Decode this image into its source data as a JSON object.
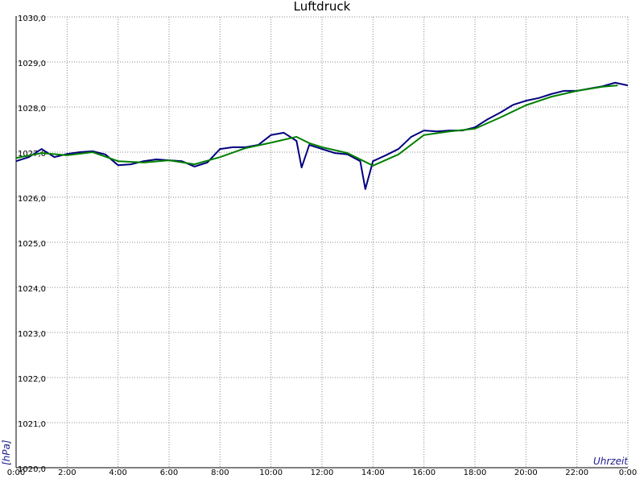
{
  "chart_data": {
    "type": "line",
    "title": "Luftdruck",
    "xlabel": "Uhrzeit",
    "ylabel": "[hPa]",
    "xlim": [
      0,
      24
    ],
    "ylim": [
      1020,
      1030
    ],
    "xticks": [
      {
        "value": 0,
        "label": "0:00"
      },
      {
        "value": 2,
        "label": "2:00"
      },
      {
        "value": 4,
        "label": "4:00"
      },
      {
        "value": 6,
        "label": "6:00"
      },
      {
        "value": 8,
        "label": "8:00"
      },
      {
        "value": 10,
        "label": "10:00"
      },
      {
        "value": 12,
        "label": "12:00"
      },
      {
        "value": 14,
        "label": "14:00"
      },
      {
        "value": 16,
        "label": "16:00"
      },
      {
        "value": 18,
        "label": "18:00"
      },
      {
        "value": 20,
        "label": "20:00"
      },
      {
        "value": 22,
        "label": "22:00"
      },
      {
        "value": 24,
        "label": "0:00"
      }
    ],
    "yticks": [
      {
        "value": 1020,
        "label": "1020,0"
      },
      {
        "value": 1021,
        "label": "1021,0"
      },
      {
        "value": 1022,
        "label": "1022,0"
      },
      {
        "value": 1023,
        "label": "1023,0"
      },
      {
        "value": 1024,
        "label": "1024,0"
      },
      {
        "value": 1025,
        "label": "1025,0"
      },
      {
        "value": 1026,
        "label": "1026,0"
      },
      {
        "value": 1027,
        "label": "1027,0"
      },
      {
        "value": 1028,
        "label": "1028,0"
      },
      {
        "value": 1029,
        "label": "1029,0"
      },
      {
        "value": 1030,
        "label": "1030,0"
      }
    ],
    "grid": true,
    "series": [
      {
        "color": "#00007f",
        "x": [
          0,
          0.5,
          1,
          1.5,
          2,
          2.5,
          3,
          3.5,
          4,
          4.5,
          5,
          5.5,
          6,
          6.5,
          7,
          7.5,
          8,
          8.5,
          9,
          9.5,
          10,
          10.5,
          11,
          11.2,
          11.5,
          12,
          12.5,
          13,
          13.5,
          13.7,
          14,
          14.5,
          15,
          15.5,
          16,
          16.5,
          17,
          17.5,
          18,
          18.5,
          19,
          19.5,
          20,
          20.5,
          21,
          21.5,
          22,
          22.5,
          23,
          23.5,
          24
        ],
        "values": [
          1026.8,
          1026.89,
          1027.07,
          1026.89,
          1026.96,
          1027.0,
          1027.02,
          1026.95,
          1026.71,
          1026.73,
          1026.8,
          1026.84,
          1026.82,
          1026.8,
          1026.68,
          1026.77,
          1027.07,
          1027.11,
          1027.11,
          1027.16,
          1027.38,
          1027.43,
          1027.25,
          1026.66,
          1027.16,
          1027.07,
          1026.98,
          1026.95,
          1026.8,
          1026.18,
          1026.8,
          1026.93,
          1027.07,
          1027.34,
          1027.48,
          1027.46,
          1027.48,
          1027.48,
          1027.55,
          1027.73,
          1027.88,
          1028.05,
          1028.14,
          1028.2,
          1028.29,
          1028.36,
          1028.36,
          1028.41,
          1028.46,
          1028.54,
          1028.48
        ]
      },
      {
        "color": "#008000",
        "x": [
          0,
          1,
          2,
          3,
          4,
          5,
          6,
          7,
          8,
          9,
          10,
          11,
          11.5,
          12,
          13,
          14,
          15,
          16,
          17,
          18,
          19,
          20,
          21,
          22,
          23,
          23.6
        ],
        "values": [
          1026.87,
          1026.98,
          1026.93,
          1027.0,
          1026.8,
          1026.77,
          1026.82,
          1026.73,
          1026.89,
          1027.09,
          1027.21,
          1027.34,
          1027.2,
          1027.11,
          1026.98,
          1026.7,
          1026.95,
          1027.38,
          1027.46,
          1027.52,
          1027.77,
          1028.04,
          1028.23,
          1028.36,
          1028.45,
          1028.48
        ]
      }
    ]
  }
}
